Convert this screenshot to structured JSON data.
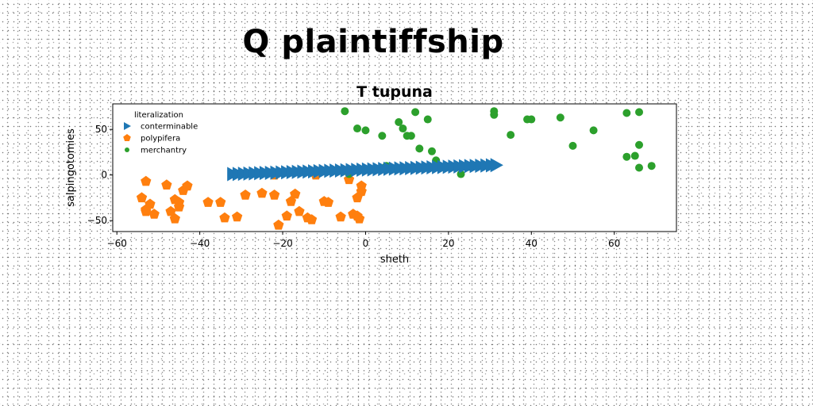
{
  "page_title": "Q plaintiffship",
  "chart_data": {
    "type": "scatter",
    "title": "T tupuna",
    "xlabel": "sheth",
    "ylabel": "salpingotomies",
    "xlim": [
      -61,
      75
    ],
    "ylim": [
      -62,
      78
    ],
    "xticks": [
      -60,
      -40,
      -20,
      0,
      20,
      40,
      60
    ],
    "yticks": [
      -50,
      0,
      50
    ],
    "grid": false,
    "legend": {
      "title": "literalization",
      "placement": "top-left"
    },
    "series": [
      {
        "name": "conterminable",
        "marker": "triangle-right",
        "color": "#1f77b4",
        "x": [
          -32.0,
          -30.7,
          -29.4,
          -28.1,
          -26.8,
          -25.5,
          -24.2,
          -22.9,
          -21.6,
          -20.3,
          -19.0,
          -17.7,
          -16.4,
          -15.1,
          -13.8,
          -12.5,
          -11.2,
          -9.9,
          -8.6,
          -7.3,
          -6.0,
          -4.7,
          -3.4,
          -2.1,
          -0.8,
          0.5,
          1.8,
          3.1,
          4.4,
          5.7,
          7.0,
          8.3,
          9.6,
          10.9,
          12.2,
          13.5,
          14.8,
          16.1,
          17.4,
          18.7,
          20.0,
          21.3,
          22.6,
          23.9,
          25.2,
          26.5,
          27.8,
          29.1,
          30.4,
          31.5
        ],
        "y": [
          1.0,
          1.2,
          1.4,
          1.6,
          1.8,
          2.0,
          2.2,
          2.4,
          2.6,
          2.8,
          3.0,
          3.2,
          3.4,
          3.6,
          3.8,
          4.0,
          4.2,
          4.4,
          4.6,
          4.8,
          5.0,
          5.2,
          5.4,
          5.6,
          5.8,
          6.0,
          6.2,
          6.4,
          6.6,
          6.8,
          7.0,
          7.2,
          7.4,
          7.6,
          7.8,
          8.0,
          8.2,
          8.4,
          8.6,
          8.8,
          9.0,
          9.2,
          9.4,
          9.6,
          9.8,
          10.0,
          10.2,
          10.4,
          10.6,
          10.8
        ]
      },
      {
        "name": "polypifera",
        "marker": "pentagon",
        "color": "#ff7f0e",
        "x": [
          -53,
          -54,
          -53,
          -52,
          -51,
          -53,
          -48,
          -46,
          -47,
          -45,
          -44,
          -43,
          -45,
          -46,
          -38,
          -35,
          -34,
          -31,
          -29,
          -25,
          -22,
          -22,
          -21,
          -19,
          -18,
          -17,
          -16,
          -14,
          -13,
          -12,
          -10,
          -9,
          -6,
          -4,
          -3,
          -2,
          -1.5,
          -1,
          -1,
          -2
        ],
        "y": [
          -7,
          -25,
          -40,
          -32,
          -43,
          -38,
          -11,
          -27,
          -40,
          -35,
          -17,
          -12,
          -30,
          -48,
          -30,
          -30,
          -47,
          -46,
          -22,
          -20,
          0,
          -22,
          -55,
          -45,
          -29,
          -21,
          -40,
          -47,
          -49,
          0,
          -29,
          -30,
          -46,
          -5,
          -43,
          -45,
          -48,
          -12,
          -18,
          -25
        ]
      },
      {
        "name": "merchantry",
        "marker": "circle",
        "color": "#2ca02c",
        "x": [
          -5,
          -2,
          0,
          4,
          5,
          8,
          9,
          10,
          11,
          12,
          13,
          15,
          16,
          17,
          23,
          25,
          31,
          31,
          35,
          39,
          40,
          47,
          50,
          55,
          63,
          63,
          65,
          66,
          66,
          66,
          69,
          -4
        ],
        "y": [
          70,
          51,
          49,
          43,
          10,
          58,
          51,
          43,
          43,
          69,
          29,
          61,
          26,
          16,
          1,
          9,
          70,
          66,
          44,
          61,
          61,
          63,
          32,
          49,
          68,
          20,
          21,
          33,
          8,
          69,
          10,
          1
        ]
      }
    ]
  }
}
